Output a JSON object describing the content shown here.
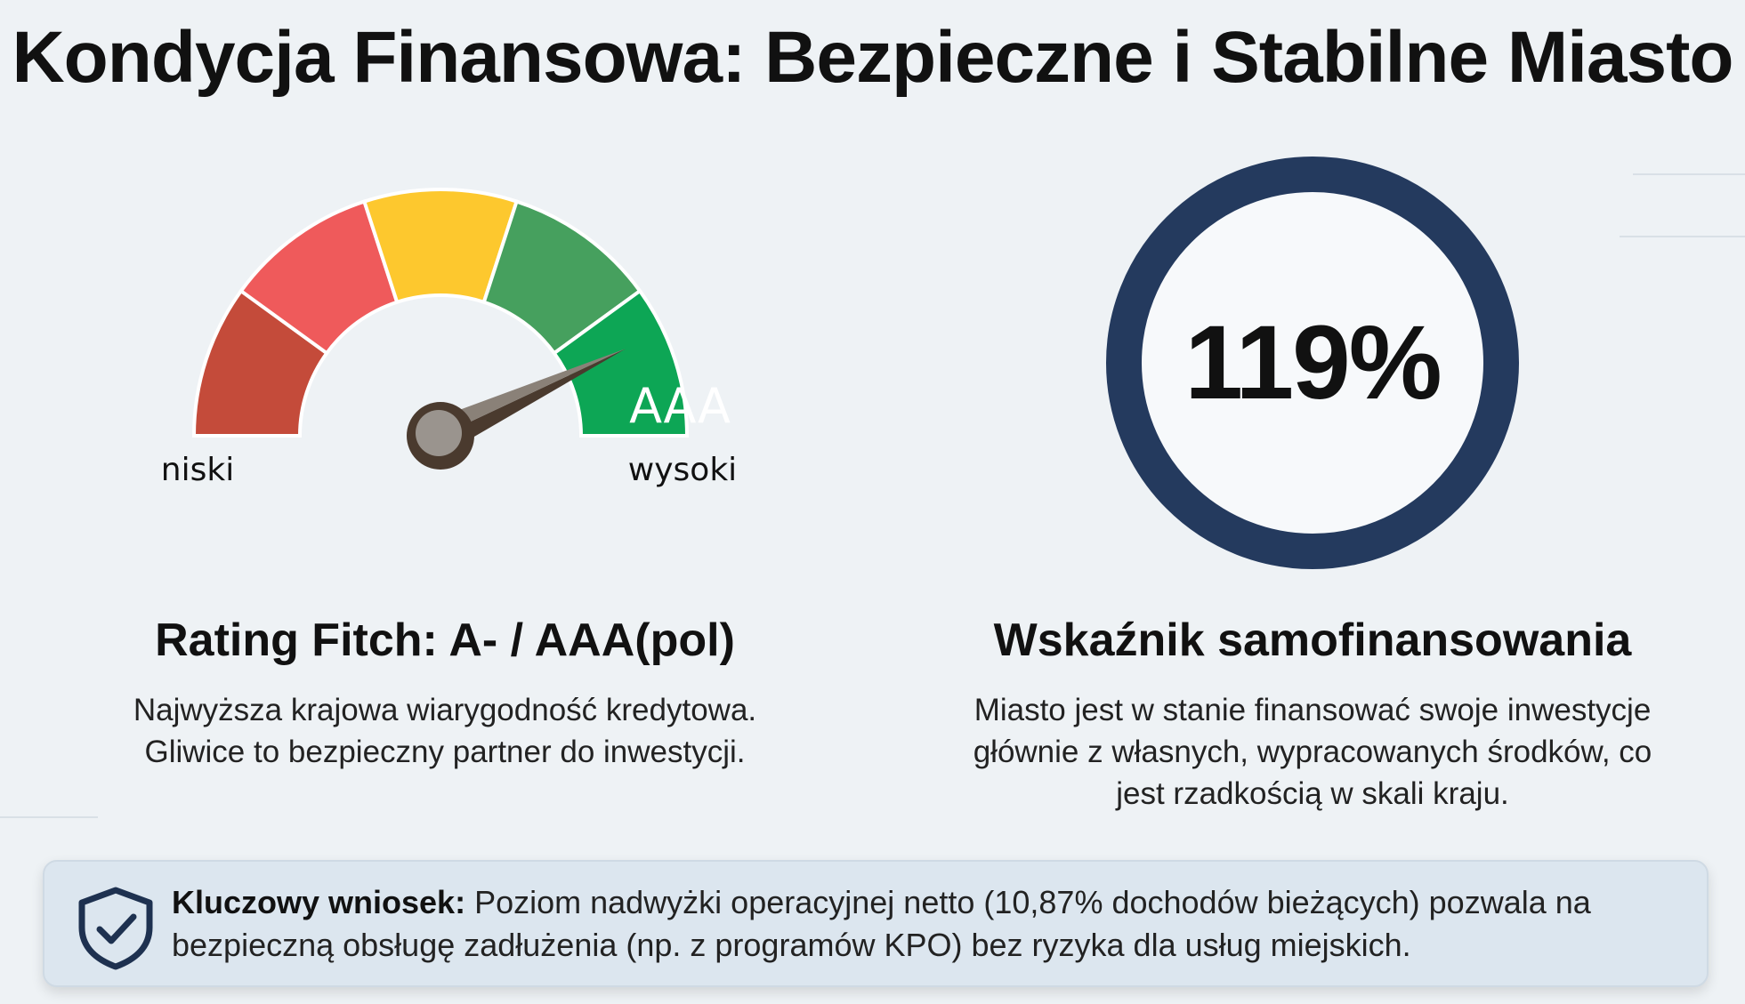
{
  "title": "Kondycja Finansowa: Bezpieczne i Stabilne Miasto",
  "gauge": {
    "segment_colors": [
      "#c44b3a",
      "#ef5a5b",
      "#fdc82e",
      "#46a05e",
      "#0da655"
    ],
    "value_label": "AAA",
    "low_label": "niski",
    "high_label": "wysoki",
    "needle_position_fraction": 0.86
  },
  "rating": {
    "title": "Rating Fitch: A- / AAA(pol)",
    "desc_line1": "Najwyższa krajowa wiarygodność kredytowa.",
    "desc_line2": "Gliwice to bezpieczny partner do inwestycji."
  },
  "ring": {
    "value": "119%",
    "color": "#243a5e"
  },
  "selffinancing": {
    "title": "Wskaźnik samofinansowania",
    "desc_line1": "Miasto jest w stanie finansować swoje inwestycje",
    "desc_line2": "głównie z własnych, wypracowanych środków, co",
    "desc_line3": "jest rzadkością w skali kraju."
  },
  "callout": {
    "icon": "shield-check-icon",
    "label": "Kluczowy wniosek:",
    "text_line1": " Poziom nadwyżki operacyjnej netto (10,87% dochodów bieżących) pozwala na",
    "text_line2": "bezpieczną obsługę zadłużenia (np. z programów KPO) bez ryzyka dla usług miejskich."
  }
}
